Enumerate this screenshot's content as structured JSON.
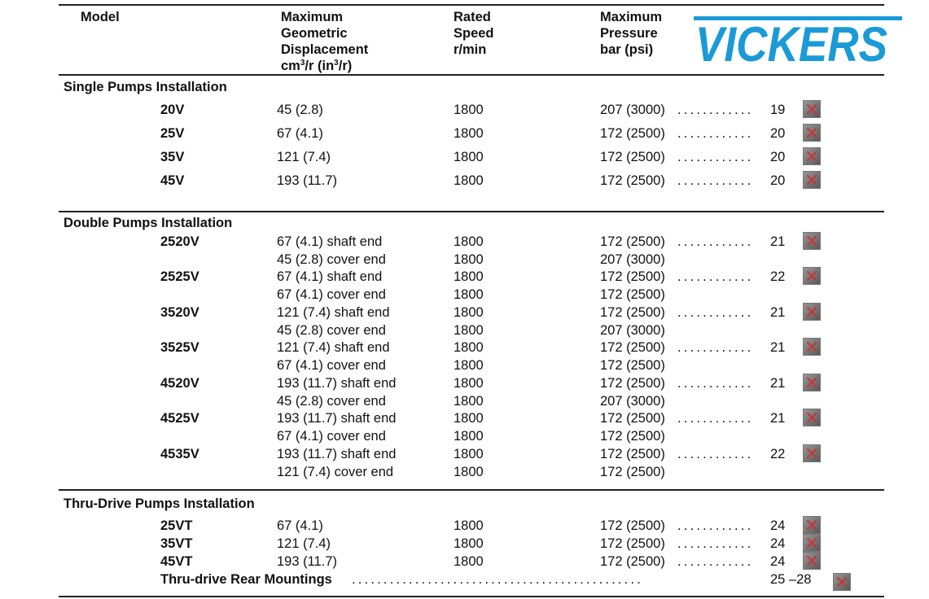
{
  "header": {
    "model": "Model",
    "displacement": [
      "Maximum",
      "Geometric",
      "Displacement"
    ],
    "displacement_unit": {
      "a": "cm",
      "sup1": "3",
      "b": "/r (in",
      "sup2": "3",
      "c": "/r)"
    },
    "speed": [
      "Rated",
      "Speed",
      "r/min"
    ],
    "pressure": [
      "Maximum",
      "Pressure",
      "bar (psi)"
    ],
    "logo_text": "VICKERS",
    "logo_color": "#1a9ad6"
  },
  "sections": [
    {
      "title": "Single Pumps Installation",
      "rows": [
        {
          "model": "20V",
          "disp": "45 (2.8)",
          "speed": "1800",
          "pressure": "207 (3000)",
          "page": "19",
          "icon": "broken-image-icon"
        },
        {
          "model": "25V",
          "disp": "67 (4.1)",
          "speed": "1800",
          "pressure": "172 (2500)",
          "page": "20",
          "icon": "broken-image-icon"
        },
        {
          "model": "35V",
          "disp": "121 (7.4)",
          "speed": "1800",
          "pressure": "172 (2500)",
          "page": "20",
          "icon": "broken-image-icon"
        },
        {
          "model": "45V",
          "disp": "193 (11.7)",
          "speed": "1800",
          "pressure": "172 (2500)",
          "page": "20",
          "icon": "broken-image-icon"
        }
      ]
    },
    {
      "title": "Double Pumps Installation",
      "rows": [
        {
          "model": "2520V",
          "disp": "67 (4.1) shaft end",
          "speed": "1800",
          "pressure": "172 (2500)",
          "page": "21",
          "icon": "broken-image-icon"
        },
        {
          "model": "",
          "disp": "45 (2.8) cover end",
          "speed": "1800",
          "pressure": "207 (3000)"
        },
        {
          "model": "2525V",
          "disp": "67 (4.1) shaft end",
          "speed": "1800",
          "pressure": "172 (2500)",
          "page": "22",
          "icon": "broken-image-icon"
        },
        {
          "model": "",
          "disp": "67 (4.1) cover end",
          "speed": "1800",
          "pressure": "172 (2500)"
        },
        {
          "model": "3520V",
          "disp": "121 (7.4) shaft end",
          "speed": "1800",
          "pressure": "172 (2500)",
          "page": "21",
          "icon": "broken-image-icon"
        },
        {
          "model": "",
          "disp": "45 (2.8) cover end",
          "speed": "1800",
          "pressure": "207 (3000)"
        },
        {
          "model": "3525V",
          "disp": "121 (7.4) shaft end",
          "speed": "1800",
          "pressure": "172 (2500)",
          "page": "21",
          "icon": "broken-image-icon"
        },
        {
          "model": "",
          "disp": "67 (4.1) cover end",
          "speed": "1800",
          "pressure": "172 (2500)"
        },
        {
          "model": "4520V",
          "disp": "193 (11.7) shaft end",
          "speed": "1800",
          "pressure": "172 (2500)",
          "page": "21",
          "icon": "broken-image-icon"
        },
        {
          "model": "",
          "disp": "45 (2.8) cover end",
          "speed": "1800",
          "pressure": "207 (3000)"
        },
        {
          "model": "4525V",
          "disp": "193 (11.7) shaft end",
          "speed": "1800",
          "pressure": "172 (2500)",
          "page": "21",
          "icon": "broken-image-icon"
        },
        {
          "model": "",
          "disp": "67 (4.1) cover end",
          "speed": "1800",
          "pressure": "172 (2500)"
        },
        {
          "model": "4535V",
          "disp": "193 (11.7) shaft end",
          "speed": "1800",
          "pressure": "172 (2500)",
          "page": "22",
          "icon": "broken-image-icon"
        },
        {
          "model": "",
          "disp": "121 (7.4) cover end",
          "speed": "1800",
          "pressure": "172 (2500)"
        }
      ]
    },
    {
      "title": "Thru-Drive Pumps Installation",
      "rows": [
        {
          "model": "25VT",
          "disp": "67 (4.1)",
          "speed": "1800",
          "pressure": "172 (2500)",
          "page": "24",
          "icon": "broken-image-icon"
        },
        {
          "model": "35VT",
          "disp": "121 (7.4)",
          "speed": "1800",
          "pressure": "172 (2500)",
          "page": "24",
          "icon": "broken-image-icon"
        },
        {
          "model": "45VT",
          "disp": "193 (11.7)",
          "speed": "1800",
          "pressure": "172 (2500)",
          "page": "24",
          "icon": "broken-image-icon"
        }
      ]
    }
  ],
  "footer_entry": {
    "label": "Thru-drive Rear Mountings",
    "page": "25 –28",
    "icon": "broken-image-icon"
  }
}
